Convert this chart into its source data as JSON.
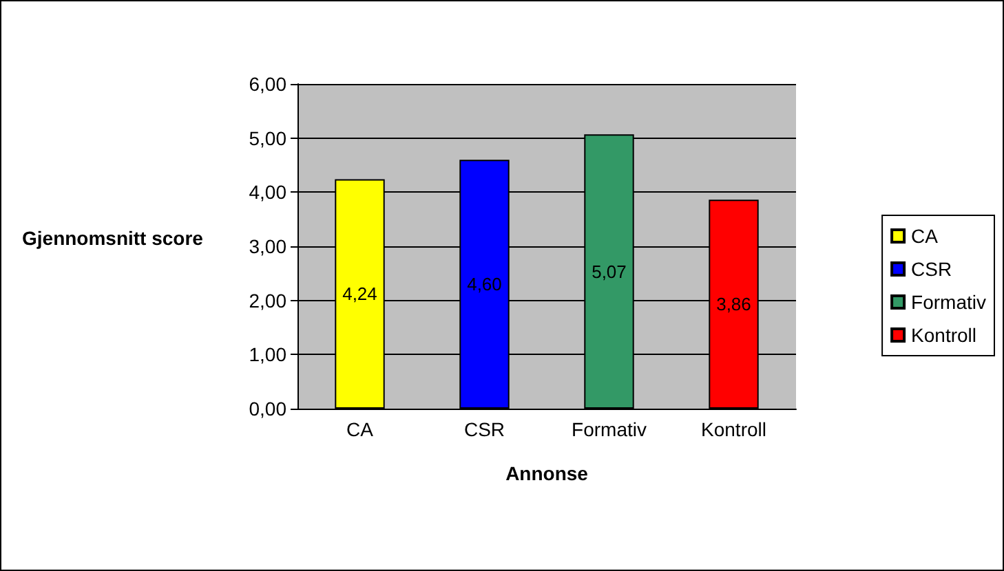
{
  "chart_data": {
    "type": "bar",
    "xlabel": "Annonse",
    "ylabel": "Gjennomsnitt score",
    "categories": [
      "CA",
      "CSR",
      "Formativ",
      "Kontroll"
    ],
    "series": [
      {
        "name": "CA",
        "color": "#ffff00",
        "values": [
          4.24,
          null,
          null,
          null
        ],
        "value_labels": [
          "4,24",
          null,
          null,
          null
        ]
      },
      {
        "name": "CSR",
        "color": "#0000ff",
        "values": [
          null,
          4.6,
          null,
          null
        ],
        "value_labels": [
          null,
          "4,60",
          null,
          null
        ]
      },
      {
        "name": "Formativ",
        "color": "#339966",
        "values": [
          null,
          null,
          5.07,
          null
        ],
        "value_labels": [
          null,
          null,
          "5,07",
          null
        ]
      },
      {
        "name": "Kontroll",
        "color": "#ff0000",
        "values": [
          null,
          null,
          null,
          3.86
        ],
        "value_labels": [
          null,
          null,
          null,
          "3,86"
        ]
      }
    ],
    "stacked": true,
    "ylim": [
      0,
      6
    ],
    "yticks": [
      {
        "value": 0,
        "label": "0,00"
      },
      {
        "value": 1,
        "label": "1,00"
      },
      {
        "value": 2,
        "label": "2,00"
      },
      {
        "value": 3,
        "label": "3,00"
      },
      {
        "value": 4,
        "label": "4,00"
      },
      {
        "value": 5,
        "label": "5,00"
      },
      {
        "value": 6,
        "label": "6,00"
      }
    ],
    "grid": "y",
    "legend": "right"
  }
}
